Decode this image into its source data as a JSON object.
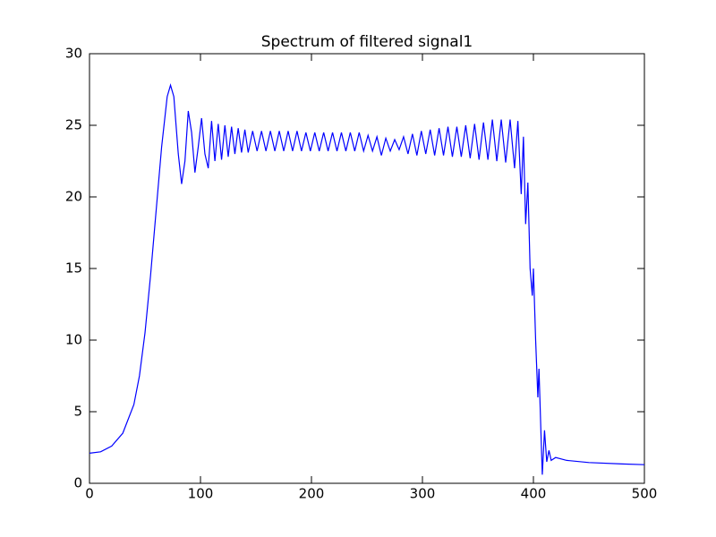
{
  "chart_data": {
    "type": "line",
    "title": "Spectrum of filtered signal1",
    "x": [
      0,
      10,
      20,
      30,
      40,
      45,
      50,
      55,
      60,
      65,
      70,
      73,
      76,
      80,
      83,
      86,
      89,
      92,
      95,
      98,
      101,
      104,
      107,
      110,
      113,
      116,
      119,
      122,
      125,
      128,
      131,
      134,
      137,
      140,
      143,
      147,
      151,
      155,
      159,
      163,
      167,
      171,
      175,
      179,
      183,
      187,
      191,
      195,
      199,
      203,
      207,
      211,
      215,
      219,
      223,
      227,
      231,
      235,
      239,
      243,
      247,
      251,
      255,
      259,
      263,
      267,
      271,
      275,
      279,
      283,
      287,
      291,
      295,
      299,
      303,
      307,
      311,
      315,
      319,
      323,
      327,
      331,
      335,
      339,
      343,
      347,
      351,
      355,
      359,
      363,
      367,
      371,
      375,
      379,
      383,
      386,
      389,
      391,
      393,
      395,
      397,
      399,
      400,
      402,
      404,
      405,
      407,
      408,
      410,
      412,
      414,
      416,
      420,
      430,
      450,
      480,
      500
    ],
    "series": [
      {
        "color": "#0000ff",
        "values": [
          2.1,
          2.2,
          2.6,
          3.5,
          5.5,
          7.5,
          10.5,
          14.5,
          19,
          23.5,
          27,
          27.8,
          27,
          23,
          20.9,
          22.5,
          26,
          24.5,
          21.7,
          23.5,
          25.5,
          23,
          22,
          25.3,
          22.5,
          25.1,
          22.6,
          25,
          22.8,
          24.9,
          23,
          24.8,
          23.1,
          24.7,
          23.1,
          24.6,
          23.2,
          24.6,
          23.2,
          24.6,
          23.2,
          24.6,
          23.2,
          24.6,
          23.2,
          24.6,
          23.2,
          24.5,
          23.2,
          24.5,
          23.2,
          24.5,
          23.2,
          24.5,
          23.2,
          24.5,
          23.2,
          24.5,
          23.2,
          24.5,
          23.2,
          24.3,
          23.2,
          24.2,
          22.9,
          24.1,
          23.2,
          24.0,
          23.3,
          24.2,
          23,
          24.4,
          22.9,
          24.6,
          23,
          24.7,
          22.9,
          24.8,
          22.9,
          24.9,
          22.8,
          24.9,
          22.8,
          25,
          22.7,
          25.1,
          22.6,
          25.2,
          22.6,
          25.4,
          22.5,
          25.4,
          22.4,
          25.4,
          22,
          25.3,
          20.2,
          24.2,
          18.1,
          21,
          15,
          13.1,
          15,
          10,
          6,
          8,
          3,
          0.6,
          3.7,
          1.5,
          2.3,
          1.6,
          1.8,
          1.6,
          1.45,
          1.35,
          1.3
        ]
      }
    ],
    "xlim": [
      0,
      500
    ],
    "ylim": [
      0,
      30
    ],
    "xticks": [
      0,
      100,
      200,
      300,
      400,
      500
    ],
    "yticks": [
      0,
      5,
      10,
      15,
      20,
      25,
      30
    ]
  }
}
